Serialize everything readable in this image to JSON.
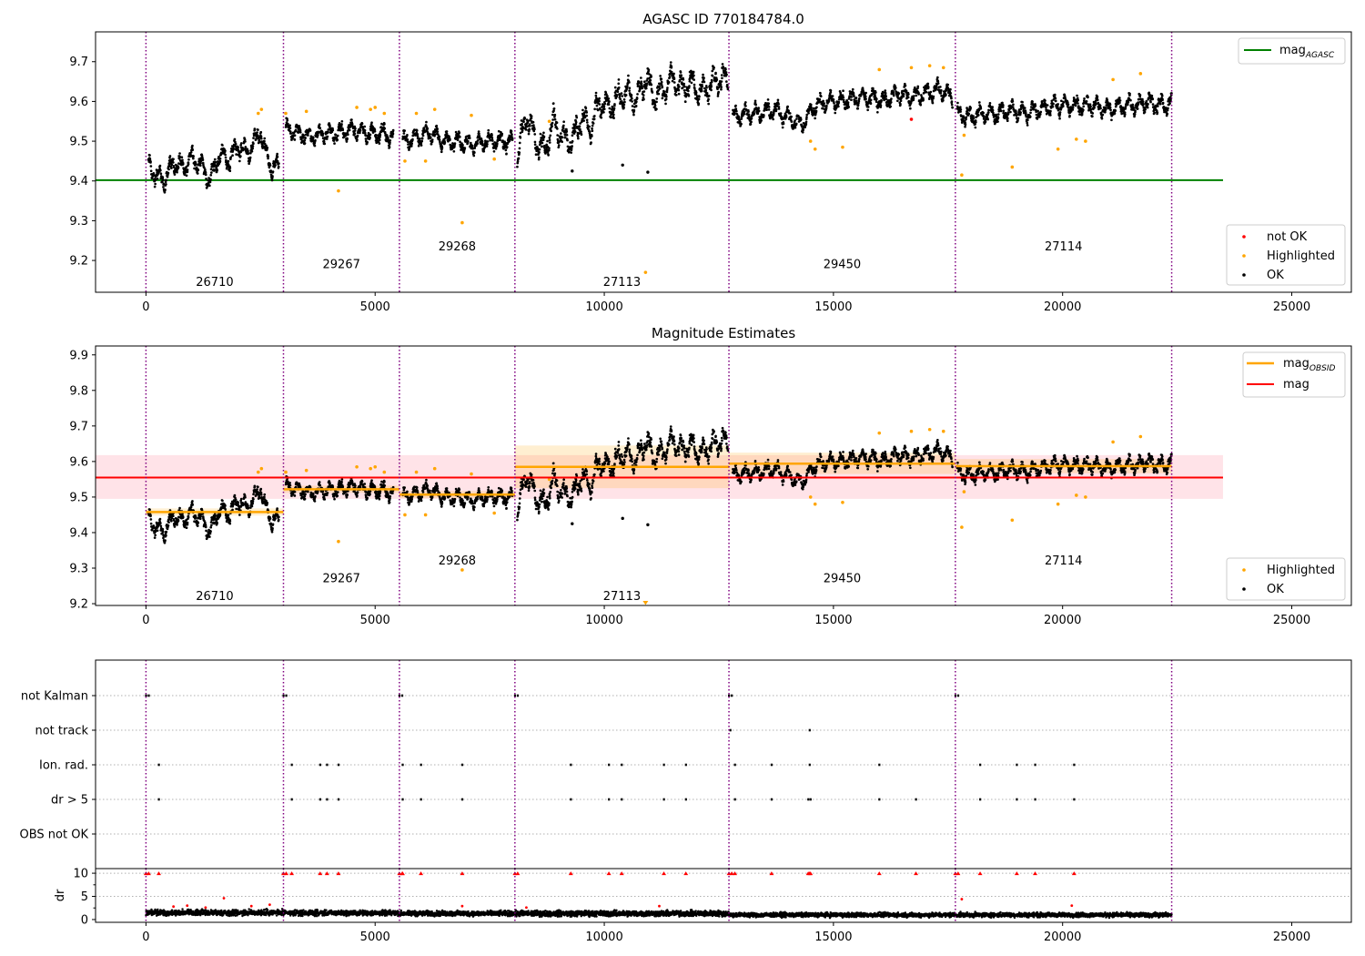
{
  "figure": {
    "obsids": [
      "26710",
      "29267",
      "29268",
      "27113",
      "29450",
      "27114"
    ],
    "obsid_boundaries": [
      0,
      3000,
      5530,
      8050,
      12720,
      17660,
      22380
    ],
    "colors": {
      "ok": "#000000",
      "highlighted": "#ffa500",
      "not_ok": "#ff0000",
      "mag_agasc": "#008000",
      "mag": "#ff0000",
      "mag_obsid": "#ffa500",
      "boundary": "#800080",
      "mag_band": "#ffc0cb"
    }
  },
  "chart_data": [
    {
      "type": "scatter",
      "title": "AGASC ID 770184784.0",
      "xlim": [
        -1100,
        26300
      ],
      "ylim": [
        9.12,
        9.775
      ],
      "xticks": [
        "0",
        "5000",
        "10000",
        "15000",
        "20000",
        "25000"
      ],
      "yticks": [
        "9.2",
        "9.3",
        "9.4",
        "9.5",
        "9.6",
        "9.7"
      ],
      "obsid_label_y": [
        9.145,
        9.19,
        9.235,
        9.145,
        9.19,
        9.235
      ],
      "mag_agasc": 9.402,
      "mag_agasc_xrange": [
        -1100,
        23500
      ],
      "series_ok": [
        {
          "x": [
            50,
            250,
            400,
            600,
            800,
            1000,
            1200,
            1400,
            1600,
            1800,
            2000,
            2200,
            2400,
            2500,
            2600,
            2750,
            2900
          ],
          "y": [
            9.44,
            9.41,
            9.4,
            9.45,
            9.43,
            9.46,
            9.44,
            9.4,
            9.47,
            9.45,
            9.49,
            9.47,
            9.5,
            9.53,
            9.47,
            9.43,
            9.44
          ],
          "spread": 0.035
        },
        {
          "x": [
            3050,
            3300,
            3600,
            3900,
            4200,
            4500,
            4800,
            5100,
            5400
          ],
          "y": [
            9.53,
            9.52,
            9.51,
            9.52,
            9.52,
            9.53,
            9.52,
            9.52,
            9.51
          ],
          "spread": 0.03
        },
        {
          "x": [
            5600,
            5900,
            6200,
            6500,
            6800,
            7100,
            7400,
            7700,
            8000
          ],
          "y": [
            9.5,
            9.51,
            9.52,
            9.5,
            9.5,
            9.49,
            9.5,
            9.5,
            9.5
          ],
          "spread": 0.03
        },
        {
          "x": [
            8100,
            8300,
            8500,
            8700,
            8900,
            9100,
            9300,
            9500,
            9700,
            9900,
            10100,
            10300,
            10500,
            10700,
            10900,
            11100,
            11300,
            11500,
            11700,
            11900,
            12100,
            12300,
            12500,
            12700
          ],
          "y": [
            9.45,
            9.57,
            9.5,
            9.48,
            9.55,
            9.51,
            9.5,
            9.56,
            9.53,
            9.6,
            9.58,
            9.61,
            9.62,
            9.6,
            9.66,
            9.61,
            9.63,
            9.66,
            9.63,
            9.65,
            9.62,
            9.64,
            9.66,
            9.65
          ],
          "spread": 0.045
        },
        {
          "x": [
            12800,
            13100,
            13400,
            13700,
            14000,
            14300,
            14600,
            14900,
            15200,
            15500,
            15800,
            16100,
            16400,
            16700,
            17000,
            17300,
            17600
          ],
          "y": [
            9.56,
            9.57,
            9.57,
            9.58,
            9.56,
            9.54,
            9.59,
            9.6,
            9.6,
            9.61,
            9.61,
            9.6,
            9.62,
            9.61,
            9.62,
            9.63,
            9.61
          ],
          "spread": 0.03
        },
        {
          "x": [
            17700,
            18000,
            18300,
            18600,
            18900,
            19200,
            19500,
            19800,
            20100,
            20400,
            20700,
            21000,
            21300,
            21600,
            21900,
            22200,
            22380
          ],
          "y": [
            9.57,
            9.56,
            9.57,
            9.57,
            9.58,
            9.57,
            9.58,
            9.59,
            9.59,
            9.59,
            9.59,
            9.58,
            9.59,
            9.59,
            9.6,
            9.59,
            9.6
          ],
          "spread": 0.03
        }
      ],
      "series_outliers_ok": {
        "x": [
          9300,
          10400,
          10950
        ],
        "y": [
          9.425,
          9.44,
          9.422
        ]
      },
      "series_highlighted": {
        "x": [
          2450,
          2520,
          3050,
          3500,
          4200,
          4600,
          4900,
          5000,
          5200,
          5650,
          5900,
          6100,
          6300,
          6900,
          7100,
          7600,
          8800,
          10900,
          14500,
          14600,
          15200,
          16000,
          16700,
          17100,
          17400,
          17800,
          17850,
          18900,
          19900,
          20300,
          20500,
          21100,
          21700
        ],
        "y": [
          9.57,
          9.58,
          9.57,
          9.575,
          9.375,
          9.585,
          9.58,
          9.585,
          9.57,
          9.45,
          9.57,
          9.45,
          9.58,
          9.295,
          9.565,
          9.455,
          9.55,
          9.17,
          9.5,
          9.48,
          9.485,
          9.68,
          9.685,
          9.69,
          9.685,
          9.415,
          9.515,
          9.435,
          9.48,
          9.505,
          9.5,
          9.655,
          9.67
        ]
      },
      "series_not_ok": {
        "x": [
          16700
        ],
        "y": [
          9.555
        ]
      },
      "legend_upper": [
        "mag_AGASC"
      ],
      "legend_lower": [
        "not OK",
        "Highlighted",
        "OK"
      ]
    },
    {
      "type": "scatter",
      "title": "Magnitude Estimates",
      "xlim": [
        -1100,
        26300
      ],
      "ylim": [
        9.195,
        9.925
      ],
      "xticks": [
        "0",
        "5000",
        "10000",
        "15000",
        "20000",
        "25000"
      ],
      "yticks": [
        "9.2",
        "9.3",
        "9.4",
        "9.5",
        "9.6",
        "9.7",
        "9.8",
        "9.9"
      ],
      "obsid_label_y": [
        9.22,
        9.27,
        9.32,
        9.22,
        9.27,
        9.32
      ],
      "mag": 9.555,
      "mag_band": [
        9.495,
        9.618
      ],
      "mag_xrange": [
        -1100,
        23500
      ],
      "mag_obsid": [
        9.458,
        9.522,
        9.507,
        9.585,
        9.594,
        9.587
      ],
      "mag_obsid_band": [
        [
          9.448,
          9.468
        ],
        [
          9.512,
          9.532
        ],
        [
          9.497,
          9.517
        ],
        [
          9.525,
          9.645
        ],
        [
          9.565,
          9.625
        ],
        [
          9.567,
          9.607
        ]
      ],
      "legend_upper": [
        "mag_OBSID",
        "mag"
      ],
      "legend_lower": [
        "Highlighted",
        "OK"
      ]
    },
    {
      "type": "scatter",
      "title": "",
      "xlim": [
        -1100,
        26300
      ],
      "categories": [
        "not Kalman",
        "not track",
        "Ion. rad.",
        "dr > 5",
        "OBS not OK"
      ],
      "flags": {
        "not Kalman": [
          0,
          60,
          3000,
          3060,
          5530,
          5590,
          8050,
          8110,
          12720,
          12780,
          17660,
          17720
        ],
        "not track": [
          12750,
          14480
        ],
        "Ion. rad.": [
          280,
          3180,
          3800,
          3950,
          4200,
          5600,
          6000,
          6900,
          9270,
          10100,
          10380,
          11300,
          11780,
          12850,
          13650,
          14480,
          16000,
          18200,
          19000,
          19400,
          20250
        ],
        "dr > 5": [
          280,
          3180,
          3800,
          3950,
          4200,
          5600,
          6000,
          6900,
          9270,
          10100,
          10380,
          11300,
          11780,
          12850,
          13650,
          14450,
          14500,
          16000,
          16800,
          18200,
          19000,
          19400,
          20250
        ],
        "OBS not OK": []
      }
    },
    {
      "type": "scatter",
      "ylabel": "dr",
      "xlim": [
        -1100,
        26300
      ],
      "ylim": [
        -0.6,
        11.0
      ],
      "xticks": [
        "0",
        "5000",
        "10000",
        "15000",
        "20000",
        "25000"
      ],
      "yticks": [
        "0",
        "5",
        "10"
      ],
      "dr_level": [
        1.5,
        1.4,
        1.3,
        1.3,
        1.0,
        1.0
      ],
      "dr_spread": [
        0.9,
        0.8,
        0.8,
        0.9,
        0.7,
        0.7
      ],
      "clipped_x": [
        0,
        60,
        280,
        3000,
        3060,
        3180,
        3800,
        3950,
        4200,
        5530,
        5590,
        5600,
        6000,
        6900,
        8050,
        8110,
        9270,
        10100,
        10380,
        11300,
        11780,
        12720,
        12780,
        12850,
        13650,
        14450,
        14480,
        14500,
        16000,
        16800,
        17660,
        17720,
        18200,
        19000,
        19400,
        20250
      ],
      "clipped_value": 10.0,
      "red_scatter": {
        "x": [
          600,
          900,
          1300,
          1700,
          2300,
          2700,
          6900,
          17800,
          20200,
          8300,
          11200
        ],
        "y": [
          2.8,
          3.0,
          2.6,
          4.6,
          2.9,
          3.2,
          2.9,
          4.4,
          3.0,
          2.6,
          2.9
        ]
      }
    }
  ],
  "legend": {
    "mag_agasc_main": "mag",
    "mag_agasc_sub": "AGASC",
    "mag_obsid_main": "mag",
    "mag_obsid_sub": "OBSID",
    "mag": "mag",
    "not_ok": "not OK",
    "highlighted": "Highlighted",
    "ok": "OK"
  }
}
